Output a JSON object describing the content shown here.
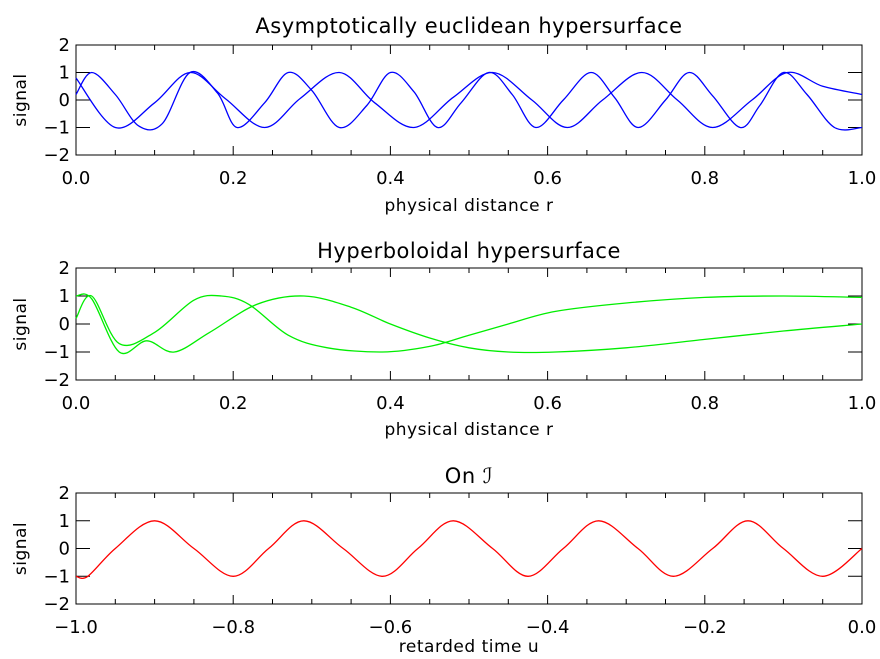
{
  "chart_data": [
    {
      "type": "line",
      "title": "Asymptotically euclidean hypersurface",
      "xlabel": "physical distance r",
      "ylabel": "signal",
      "xlim": [
        0.0,
        1.0
      ],
      "ylim": [
        -2,
        2
      ],
      "x_ticks": [
        0.0,
        0.2,
        0.4,
        0.6,
        0.8,
        1.0
      ],
      "x_tick_labels": [
        "0.0",
        "0.2",
        "0.4",
        "0.6",
        "0.8",
        "1.0"
      ],
      "y_ticks": [
        -2,
        -1,
        0,
        1,
        2
      ],
      "y_tick_labels": [
        "−2",
        "−1",
        "0",
        "1",
        "2"
      ],
      "color": "#0000ff",
      "series": [
        {
          "x": [
            0.0,
            0.02,
            0.05,
            0.08,
            0.11,
            0.145,
            0.18,
            0.205,
            0.24,
            0.27,
            0.3,
            0.335,
            0.37,
            0.4,
            0.43,
            0.46,
            0.49,
            0.525,
            0.555,
            0.585,
            0.62,
            0.655,
            0.685,
            0.715,
            0.75,
            0.78,
            0.81,
            0.845,
            0.87,
            0.9,
            0.93,
            0.965,
            1.0
          ],
          "y": [
            0.2,
            1.0,
            0.2,
            -0.95,
            -0.85,
            1.0,
            0.25,
            -1.0,
            -0.1,
            1.0,
            0.35,
            -1.0,
            -0.2,
            1.0,
            0.3,
            -1.0,
            -0.1,
            1.0,
            0.2,
            -1.0,
            0.0,
            1.0,
            0.1,
            -1.0,
            0.0,
            1.0,
            0.15,
            -1.0,
            -0.2,
            1.0,
            0.2,
            -1.0,
            -1.0
          ]
        },
        {
          "x": [
            0.0,
            0.05,
            0.1,
            0.145,
            0.19,
            0.24,
            0.285,
            0.335,
            0.38,
            0.43,
            0.48,
            0.53,
            0.58,
            0.625,
            0.67,
            0.72,
            0.765,
            0.81,
            0.86,
            0.905,
            0.95,
            1.0
          ],
          "y": [
            0.8,
            -1.0,
            -0.1,
            1.0,
            0.05,
            -1.0,
            0.05,
            1.0,
            -0.1,
            -1.0,
            0.1,
            1.0,
            0.0,
            -1.0,
            0.0,
            1.0,
            0.0,
            -1.0,
            0.0,
            1.0,
            0.5,
            0.2
          ]
        }
      ]
    },
    {
      "type": "line",
      "title": "Hyperboloidal hypersurface",
      "xlabel": "physical distance r",
      "ylabel": "signal",
      "xlim": [
        0.0,
        1.0
      ],
      "ylim": [
        -2,
        2
      ],
      "x_ticks": [
        0.0,
        0.2,
        0.4,
        0.6,
        0.8,
        1.0
      ],
      "x_tick_labels": [
        "0.0",
        "0.2",
        "0.4",
        "0.6",
        "0.8",
        "1.0"
      ],
      "y_ticks": [
        -2,
        -1,
        0,
        1,
        2
      ],
      "y_tick_labels": [
        "−2",
        "−1",
        "0",
        "1",
        "2"
      ],
      "color": "#00ee00",
      "series": [
        {
          "x": [
            0.0,
            0.02,
            0.055,
            0.1,
            0.15,
            0.185,
            0.22,
            0.27,
            0.32,
            0.39,
            0.45,
            0.5,
            0.55,
            0.61,
            0.7,
            0.8,
            0.9,
            1.0
          ],
          "y": [
            0.2,
            1.0,
            -0.7,
            -0.3,
            0.85,
            1.0,
            0.7,
            -0.4,
            -0.85,
            -1.0,
            -0.8,
            -0.4,
            0.0,
            0.45,
            0.75,
            0.95,
            1.0,
            0.95
          ]
        },
        {
          "x": [
            0.0,
            0.02,
            0.055,
            0.09,
            0.125,
            0.17,
            0.23,
            0.29,
            0.35,
            0.4,
            0.45,
            0.5,
            0.55,
            0.61,
            0.7,
            0.8,
            0.9,
            1.0
          ],
          "y": [
            1.0,
            0.9,
            -1.0,
            -0.6,
            -1.0,
            -0.3,
            0.7,
            1.0,
            0.6,
            0.0,
            -0.5,
            -0.85,
            -1.0,
            -1.0,
            -0.85,
            -0.55,
            -0.25,
            0.0
          ]
        }
      ]
    },
    {
      "type": "line",
      "title": "On ℐ",
      "xlabel": "retarded time u",
      "ylabel": "signal",
      "xlim": [
        -1.0,
        0.0
      ],
      "ylim": [
        -2,
        2
      ],
      "x_ticks": [
        -1.0,
        -0.8,
        -0.6,
        -0.4,
        -0.2,
        0.0
      ],
      "x_tick_labels": [
        "−1.0",
        "−0.8",
        "−0.6",
        "−0.4",
        "−0.2",
        "0.0"
      ],
      "y_ticks": [
        -2,
        -1,
        0,
        1,
        2
      ],
      "y_tick_labels": [
        "−2",
        "−1",
        "0",
        "1",
        "2"
      ],
      "color": "#ff0000",
      "series": [
        {
          "x": [
            -1.0,
            -0.985,
            -0.95,
            -0.9,
            -0.85,
            -0.8,
            -0.755,
            -0.71,
            -0.66,
            -0.61,
            -0.565,
            -0.52,
            -0.47,
            -0.425,
            -0.38,
            -0.335,
            -0.285,
            -0.24,
            -0.19,
            -0.145,
            -0.1,
            -0.05,
            0.0
          ],
          "y": [
            -1.0,
            -1.0,
            0.0,
            1.0,
            0.0,
            -1.0,
            0.0,
            1.0,
            0.0,
            -1.0,
            0.0,
            1.0,
            0.0,
            -1.0,
            0.0,
            1.0,
            0.0,
            -1.0,
            0.0,
            1.0,
            0.0,
            -1.0,
            0.0
          ]
        }
      ]
    }
  ]
}
